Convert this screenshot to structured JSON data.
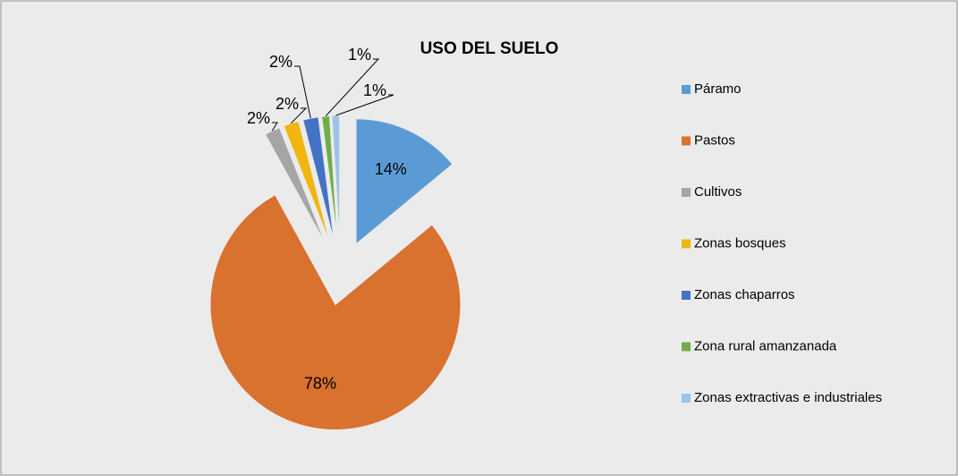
{
  "chart_data": {
    "type": "pie",
    "title": "USO DEL SUELO",
    "categories": [
      "Páramo",
      "Pastos",
      "Cultivos",
      "Zonas bosques",
      "Zonas chaparros",
      "Zona rural amanzanada",
      "Zonas extractivas e industriales"
    ],
    "values": [
      14,
      78,
      2,
      2,
      2,
      1,
      1
    ],
    "value_labels": [
      "14%",
      "78%",
      "2%",
      "2%",
      "2%",
      "1%",
      "1%"
    ],
    "colors": [
      "#5b9bd5",
      "#d9712f",
      "#a5a5a5",
      "#f2b50e",
      "#4472c4",
      "#70ad47",
      "#9dc3e6"
    ],
    "legend": "right"
  }
}
